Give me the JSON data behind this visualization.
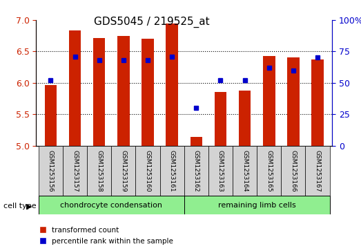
{
  "title": "GDS5045 / 219525_at",
  "samples": [
    "GSM1253156",
    "GSM1253157",
    "GSM1253158",
    "GSM1253159",
    "GSM1253160",
    "GSM1253161",
    "GSM1253162",
    "GSM1253163",
    "GSM1253164",
    "GSM1253165",
    "GSM1253166",
    "GSM1253167"
  ],
  "red_values": [
    5.97,
    6.84,
    6.71,
    6.75,
    6.7,
    6.95,
    5.14,
    5.85,
    5.88,
    6.43,
    6.4,
    6.37
  ],
  "blue_values": [
    52,
    71,
    68,
    68,
    68,
    71,
    30,
    52,
    52,
    62,
    60,
    70
  ],
  "ylim_left": [
    5.0,
    7.0
  ],
  "ylim_right": [
    0,
    100
  ],
  "yticks_left": [
    5.0,
    5.5,
    6.0,
    6.5,
    7.0
  ],
  "yticks_right": [
    0,
    25,
    50,
    75,
    100
  ],
  "ytick_labels_right": [
    "0",
    "25",
    "50",
    "75",
    "100%"
  ],
  "cell_type_groups": [
    {
      "label": "chondrocyte condensation",
      "indices": [
        0,
        1,
        2,
        3,
        4,
        5
      ],
      "color": "#90ee90"
    },
    {
      "label": "remaining limb cells",
      "indices": [
        6,
        7,
        8,
        9,
        10,
        11
      ],
      "color": "#90ee90"
    }
  ],
  "bar_color": "#cc2200",
  "dot_color": "#0000cc",
  "bar_bottom": 5.0,
  "bar_width": 0.5,
  "bg_color": "#ffffff",
  "cell_type_label": "cell type",
  "legend_items": [
    "transformed count",
    "percentile rank within the sample"
  ],
  "left_axis_color": "#cc2200",
  "right_axis_color": "#0000cc",
  "grid_dotted_at": [
    5.5,
    6.0,
    6.5
  ]
}
